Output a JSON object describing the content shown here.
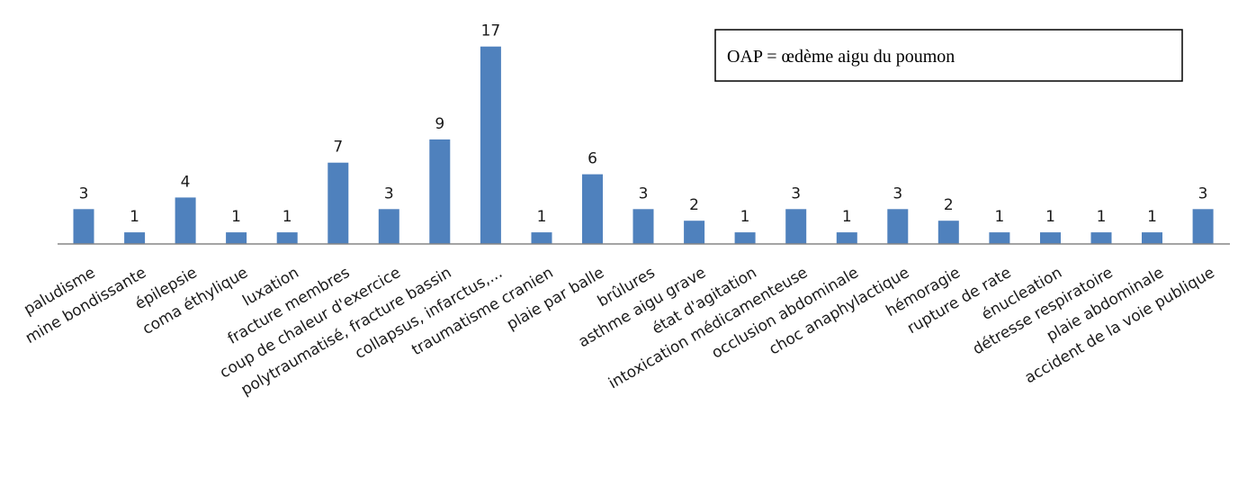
{
  "chart_data": {
    "type": "bar",
    "categories": [
      "paludisme",
      "mine bondissante",
      "épilepsie",
      "coma éthylique",
      "luxation",
      "fracture membres",
      "coup de chaleur d'exercice",
      "polytraumatisé, fracture bassin",
      "collapsus, infarctus,...",
      "traumatisme cranien",
      "plaie par balle",
      "brûlures",
      "asthme aigu grave",
      "état d'agitation",
      "intoxication médicamenteuse",
      "occlusion abdominale",
      "choc anaphylactique",
      "hémoragie",
      "rupture de rate",
      "énucleation",
      "détresse respiratoire",
      "plaie abdominale",
      "accident de la voie publique"
    ],
    "values": [
      3,
      1,
      4,
      1,
      1,
      7,
      3,
      9,
      17,
      1,
      6,
      3,
      2,
      1,
      3,
      1,
      3,
      2,
      1,
      1,
      1,
      1,
      3
    ],
    "data_labels": [
      "3",
      "1",
      "4",
      "1",
      "1",
      "7",
      "3",
      "9",
      "17",
      "1",
      "6",
      "3",
      "2",
      "1",
      "3",
      "1",
      "3",
      "2",
      "1",
      "1",
      "1",
      "1",
      "3"
    ],
    "title": "",
    "xlabel": "",
    "ylabel": "",
    "ylim": [
      0,
      17
    ],
    "grid": false,
    "legend": "none",
    "bar_color": "#4f81bd",
    "annotation": "OAP = œdème aigu du poumon"
  }
}
